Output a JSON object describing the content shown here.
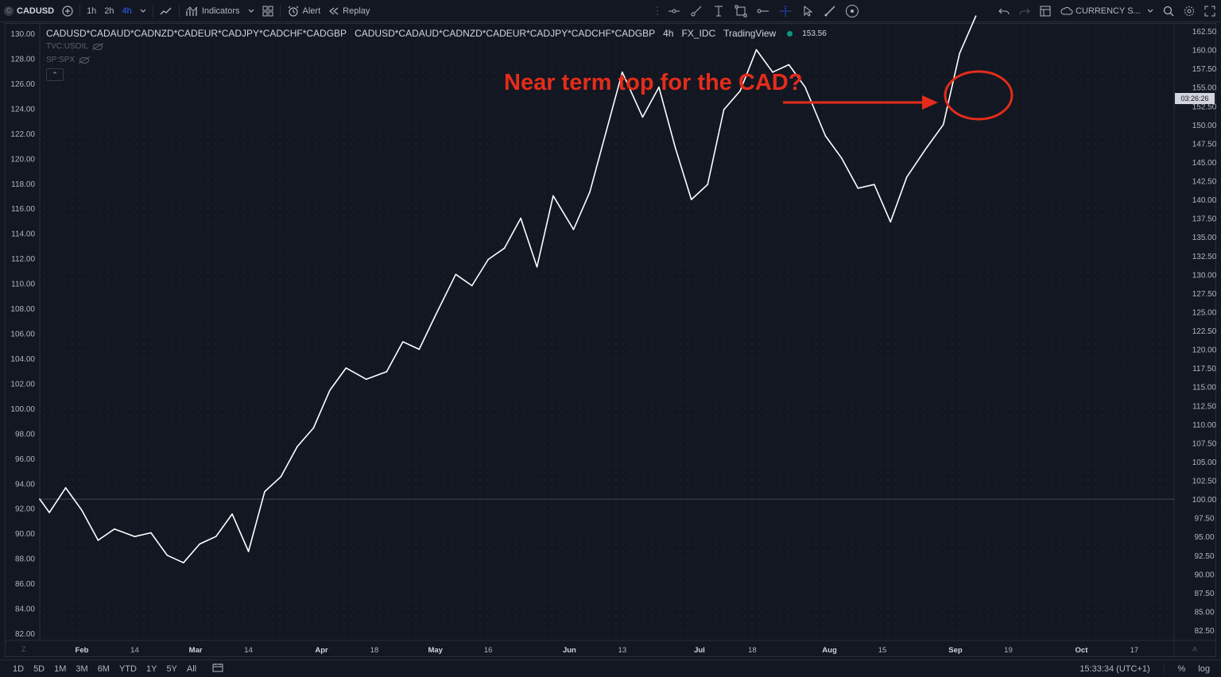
{
  "toolbar": {
    "symbol_icon_letter": "C",
    "symbol": "CADUSD",
    "intervals": [
      "1h",
      "2h",
      "4h"
    ],
    "active_interval": "4h",
    "indicators_label": "Indicators",
    "alert_label": "Alert",
    "replay_label": "Replay",
    "currency_label": "CURRENCY S..."
  },
  "legend": {
    "title": "CADUSD*CADAUD*CADNZD*CADEUR*CADJPY*CADCHF*CADGBP",
    "symbol": "CADUSD*CADAUD*CADNZD*CADEUR*CADJPY*CADCHF*CADGBP",
    "interval": "4h",
    "source": "FX_IDC",
    "provider": "TradingView",
    "value": "153.56",
    "overlays": [
      "TVC:USOIL",
      "SP:SPX"
    ],
    "collapse_glyph": "⌃"
  },
  "annotation": {
    "text": "Near term top for the CAD?",
    "color": "#e52c1a"
  },
  "price_axis_label": "03:26:26",
  "bottom_bar": {
    "ranges": [
      "1D",
      "5D",
      "1M",
      "3M",
      "6M",
      "YTD",
      "1Y",
      "5Y",
      "All"
    ],
    "time": "15:33:34 (UTC+1)",
    "percent": "%",
    "log": "log"
  },
  "colors": {
    "background": "#131722",
    "line": "#ffffff",
    "annotation": "#e52c1a",
    "accent": "#2962ff",
    "live_dot": "#089981"
  },
  "chart_data": {
    "type": "line",
    "title": "CADUSD*CADAUD*CADNZD*CADEUR*CADJPY*CADCHF*CADGBP",
    "xlabel": "",
    "ylabel": "",
    "left_axis": {
      "range": [
        82.0,
        130.0
      ],
      "ticks": [
        "130.00",
        "128.00",
        "126.00",
        "124.00",
        "122.00",
        "120.00",
        "118.00",
        "116.00",
        "114.00",
        "112.00",
        "110.00",
        "108.00",
        "106.00",
        "104.00",
        "102.00",
        "100.00",
        "98.00",
        "96.00",
        "94.00",
        "92.00",
        "90.00",
        "88.00",
        "86.00",
        "84.00",
        "82.00"
      ]
    },
    "right_axis": {
      "range": [
        82.5,
        162.5
      ],
      "ticks": [
        "162.50",
        "160.00",
        "157.50",
        "155.00",
        "152.50",
        "150.00",
        "147.50",
        "145.00",
        "142.50",
        "140.00",
        "137.50",
        "135.00",
        "132.50",
        "130.00",
        "127.50",
        "125.00",
        "122.50",
        "120.00",
        "117.50",
        "115.00",
        "112.50",
        "110.00",
        "107.50",
        "105.00",
        "102.50",
        "100.00",
        "97.50",
        "95.00",
        "92.50",
        "90.00",
        "87.50",
        "85.00",
        "82.50"
      ]
    },
    "x_ticks": [
      "Feb",
      "14",
      "Mar",
      "14",
      "Apr",
      "18",
      "May",
      "16",
      "Jun",
      "13",
      "Jul",
      "18",
      "Aug",
      "15",
      "Sep",
      "19",
      "Oct",
      "17"
    ],
    "bold_ticks": [
      "Feb",
      "Mar",
      "Apr",
      "May",
      "Jun",
      "Jul",
      "Aug",
      "Sep",
      "Oct"
    ],
    "reference_line": 100.0,
    "grid": true,
    "series": [
      {
        "x": [
          "Jan 20",
          "Jan 24",
          "Jan 28",
          "Feb 1",
          "Feb 5",
          "Feb 9",
          "Feb 14",
          "Feb 18",
          "Feb 22",
          "Feb 26",
          "Mar 2",
          "Mar 6",
          "Mar 10",
          "Mar 14",
          "Mar 18",
          "Mar 22",
          "Mar 26",
          "Mar 30",
          "Apr 3",
          "Apr 7",
          "Apr 12",
          "Apr 17",
          "Apr 21",
          "Apr 25",
          "Apr 29",
          "May 4",
          "May 8",
          "May 12",
          "May 16",
          "May 20",
          "May 24",
          "May 28",
          "Jun 2",
          "Jun 6",
          "Jun 10",
          "Jun 14",
          "Jun 19",
          "Jun 23",
          "Jun 27",
          "Jul 1",
          "Jul 5",
          "Jul 9",
          "Jul 13",
          "Jul 17",
          "Jul 21",
          "Jul 25",
          "Jul 29",
          "Aug 3",
          "Aug 7",
          "Aug 11",
          "Aug 15",
          "Aug 19",
          "Aug 23",
          "Aug 28",
          "Sep 1",
          "Sep 5",
          "Sep 9"
        ],
        "values": [
          100.0,
          98.2,
          101.5,
          98.5,
          94.5,
          96.0,
          95.0,
          95.5,
          92.5,
          91.5,
          94.0,
          95.0,
          98.0,
          93.0,
          101.0,
          103.0,
          107.0,
          109.5,
          114.5,
          117.5,
          116.0,
          117.0,
          121.0,
          120.0,
          124.5,
          130.0,
          128.5,
          132.0,
          133.5,
          137.5,
          131.0,
          140.5,
          136.0,
          141.0,
          149.0,
          157.0,
          151.0,
          155.0,
          147.0,
          140.0,
          142.0,
          152.0,
          154.5,
          160.0,
          157.0,
          158.0,
          155.0,
          148.5,
          145.5,
          141.5,
          142.0,
          137.0,
          143.0,
          147.0,
          150.0,
          159.5,
          164.5
        ]
      }
    ]
  }
}
